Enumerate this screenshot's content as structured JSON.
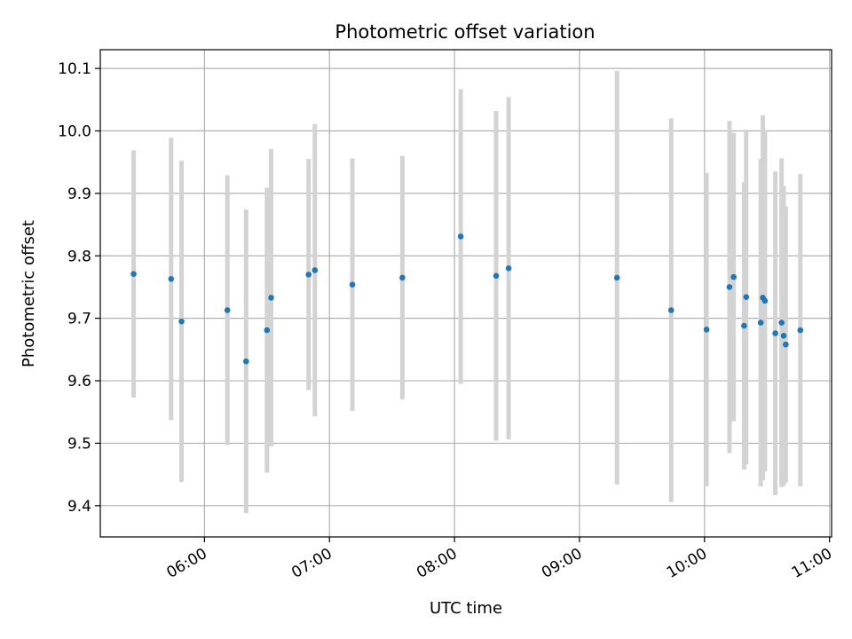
{
  "chart_data": {
    "type": "scatter",
    "title": "Photometric offset variation",
    "xlabel": "UTC time",
    "ylabel": "Photometric offset",
    "grid": true,
    "x_ticks": [
      "06:00",
      "07:00",
      "08:00",
      "09:00",
      "10:00",
      "11:00"
    ],
    "xlim": [
      "05:10",
      "11:01"
    ],
    "y_ticks": [
      "9.4",
      "9.5",
      "9.6",
      "9.7",
      "9.8",
      "9.9",
      "10.0",
      "10.1"
    ],
    "ylim": [
      9.35,
      10.13
    ],
    "colors": {
      "point": "#1f77b4",
      "errorbar": "#d3d3d3",
      "grid": "#b0b0b0"
    },
    "points": [
      {
        "x": "05:26",
        "y": 9.771,
        "err": 0.198
      },
      {
        "x": "05:44",
        "y": 9.763,
        "err": 0.226
      },
      {
        "x": "05:49",
        "y": 9.695,
        "err": 0.257
      },
      {
        "x": "06:11",
        "y": 9.713,
        "err": 0.216
      },
      {
        "x": "06:20",
        "y": 9.631,
        "err": 0.243
      },
      {
        "x": "06:30",
        "y": 9.681,
        "err": 0.228
      },
      {
        "x": "06:32",
        "y": 9.733,
        "err": 0.238
      },
      {
        "x": "06:50",
        "y": 9.77,
        "err": 0.185
      },
      {
        "x": "06:53",
        "y": 9.777,
        "err": 0.234
      },
      {
        "x": "07:11",
        "y": 9.754,
        "err": 0.202
      },
      {
        "x": "07:35",
        "y": 9.765,
        "err": 0.195
      },
      {
        "x": "08:03",
        "y": 9.831,
        "err": 0.236
      },
      {
        "x": "08:20",
        "y": 9.768,
        "err": 0.264
      },
      {
        "x": "08:26",
        "y": 9.78,
        "err": 0.274
      },
      {
        "x": "09:18",
        "y": 9.765,
        "err": 0.331
      },
      {
        "x": "09:44",
        "y": 9.713,
        "err": 0.307
      },
      {
        "x": "10:01",
        "y": 9.682,
        "err": 0.251
      },
      {
        "x": "10:12",
        "y": 9.75,
        "err": 0.266
      },
      {
        "x": "10:14",
        "y": 9.766,
        "err": 0.231
      },
      {
        "x": "10:19",
        "y": 9.688,
        "err": 0.23
      },
      {
        "x": "10:20",
        "y": 9.734,
        "err": 0.268
      },
      {
        "x": "10:27",
        "y": 9.693,
        "err": 0.262
      },
      {
        "x": "10:28",
        "y": 9.733,
        "err": 0.292
      },
      {
        "x": "10:29",
        "y": 9.728,
        "err": 0.273
      },
      {
        "x": "10:34",
        "y": 9.676,
        "err": 0.259
      },
      {
        "x": "10:37",
        "y": 9.693,
        "err": 0.263
      },
      {
        "x": "10:38",
        "y": 9.672,
        "err": 0.24
      },
      {
        "x": "10:39",
        "y": 9.658,
        "err": 0.221
      },
      {
        "x": "10:46",
        "y": 9.681,
        "err": 0.25
      }
    ]
  }
}
